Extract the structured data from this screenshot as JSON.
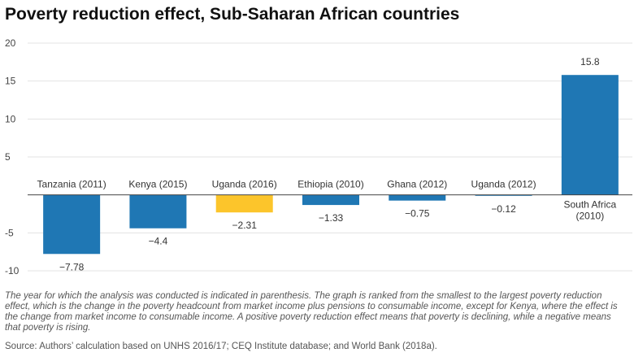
{
  "title": "Poverty reduction effect, Sub-Saharan African countries",
  "note": "The year for which the analysis was conducted is indicated in parenthesis. The graph is ranked from the smallest to the largest poverty reduction effect, which is the change in the poverty headcount from market income plus pensions to consumable income, except for Kenya, where the effect is the change from market income to consumable income. A positive poverty reduction effect means that poverty is declining, while a negative means that poverty is rising.",
  "source": "Source: Authors’ calculation based on UNHS 2016/17; CEQ Institute database; and World Bank (2018a).",
  "colors": {
    "default": "#1f77b4",
    "highlight": "#fcc52b",
    "grid": "#e3e3e3",
    "zero": "#444444"
  },
  "chart_data": {
    "type": "bar",
    "title": "Poverty reduction effect, Sub-Saharan African countries",
    "categories": [
      "Tanzania (2011)",
      "Kenya (2015)",
      "Uganda (2016)",
      "Ethiopia (2010)",
      "Ghana (2012)",
      "Uganda (2012)",
      "South Africa (2010)"
    ],
    "category_lines": [
      [
        "Tanzania (2011)"
      ],
      [
        "Kenya (2015)"
      ],
      [
        "Uganda (2016)"
      ],
      [
        "Ethiopia (2010)"
      ],
      [
        "Ghana (2012)"
      ],
      [
        "Uganda (2012)"
      ],
      [
        "South Africa",
        "(2010)"
      ]
    ],
    "values": [
      -7.78,
      -4.4,
      -2.31,
      -1.33,
      -0.75,
      -0.12,
      15.8
    ],
    "value_labels": [
      "−7.78",
      "−4.4",
      "−2.31",
      "−1.33",
      "−0.75",
      "−0.12",
      "15.8"
    ],
    "highlight_index": 2,
    "ylim": [
      -10,
      20
    ],
    "yticks": [
      -10,
      -5,
      5,
      10,
      15,
      20
    ],
    "ytick_labels": [
      "-10",
      "-5",
      "5",
      "10",
      "15",
      "20"
    ],
    "xlabel": "",
    "ylabel": "",
    "grid": true
  }
}
